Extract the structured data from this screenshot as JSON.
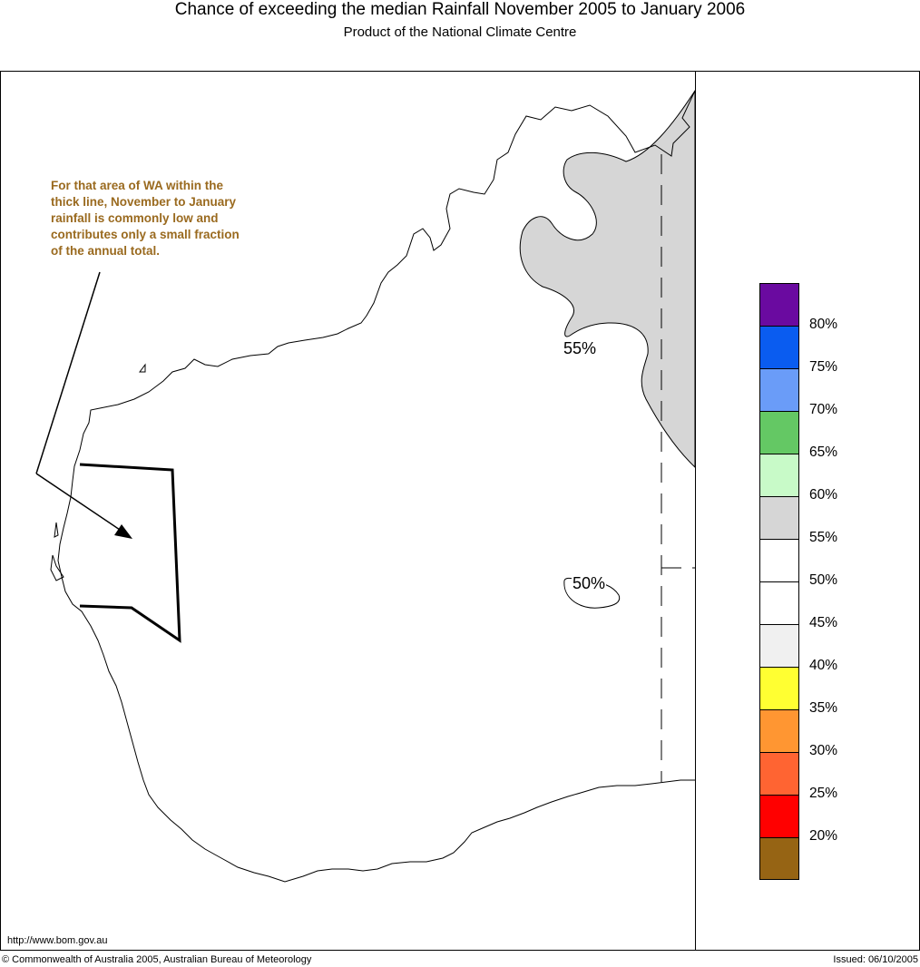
{
  "title": "Chance of exceeding the median Rainfall November 2005 to January 2006",
  "subtitle": "Product of the National Climate Centre",
  "annotation": "For that area of WA within the thick line, November to January rainfall is commonly low and contributes only a small fraction of the annual total.",
  "contour_labels": {
    "c55": "55%",
    "c50": "50%"
  },
  "legend": {
    "swatches": [
      {
        "color": "#6a0aa0",
        "label": "80%"
      },
      {
        "color": "#0a5cf0",
        "label": "75%"
      },
      {
        "color": "#6a9cf8",
        "label": "70%"
      },
      {
        "color": "#64c864",
        "label": "65%"
      },
      {
        "color": "#c8fac8",
        "label": "60%"
      },
      {
        "color": "#d6d6d6",
        "label": "55%"
      },
      {
        "color": "#ffffff",
        "label": "50%"
      },
      {
        "color": "#ffffff",
        "label": "45%"
      },
      {
        "color": "#f0f0f0",
        "label": "40%"
      },
      {
        "color": "#ffff32",
        "label": "35%"
      },
      {
        "color": "#ff9632",
        "label": "30%"
      },
      {
        "color": "#ff6432",
        "label": "25%"
      },
      {
        "color": "#ff0000",
        "label": "20%"
      },
      {
        "color": "#966414",
        "label": ""
      }
    ]
  },
  "footer": {
    "url": "http://www.bom.gov.au",
    "copyright": "© Commonwealth of Australia 2005, Australian Bureau of Meteorology",
    "issued": "Issued: 06/10/2005"
  },
  "colors": {
    "annotation": "#9a6a1f",
    "shaded_region": "#d6d6d6"
  }
}
